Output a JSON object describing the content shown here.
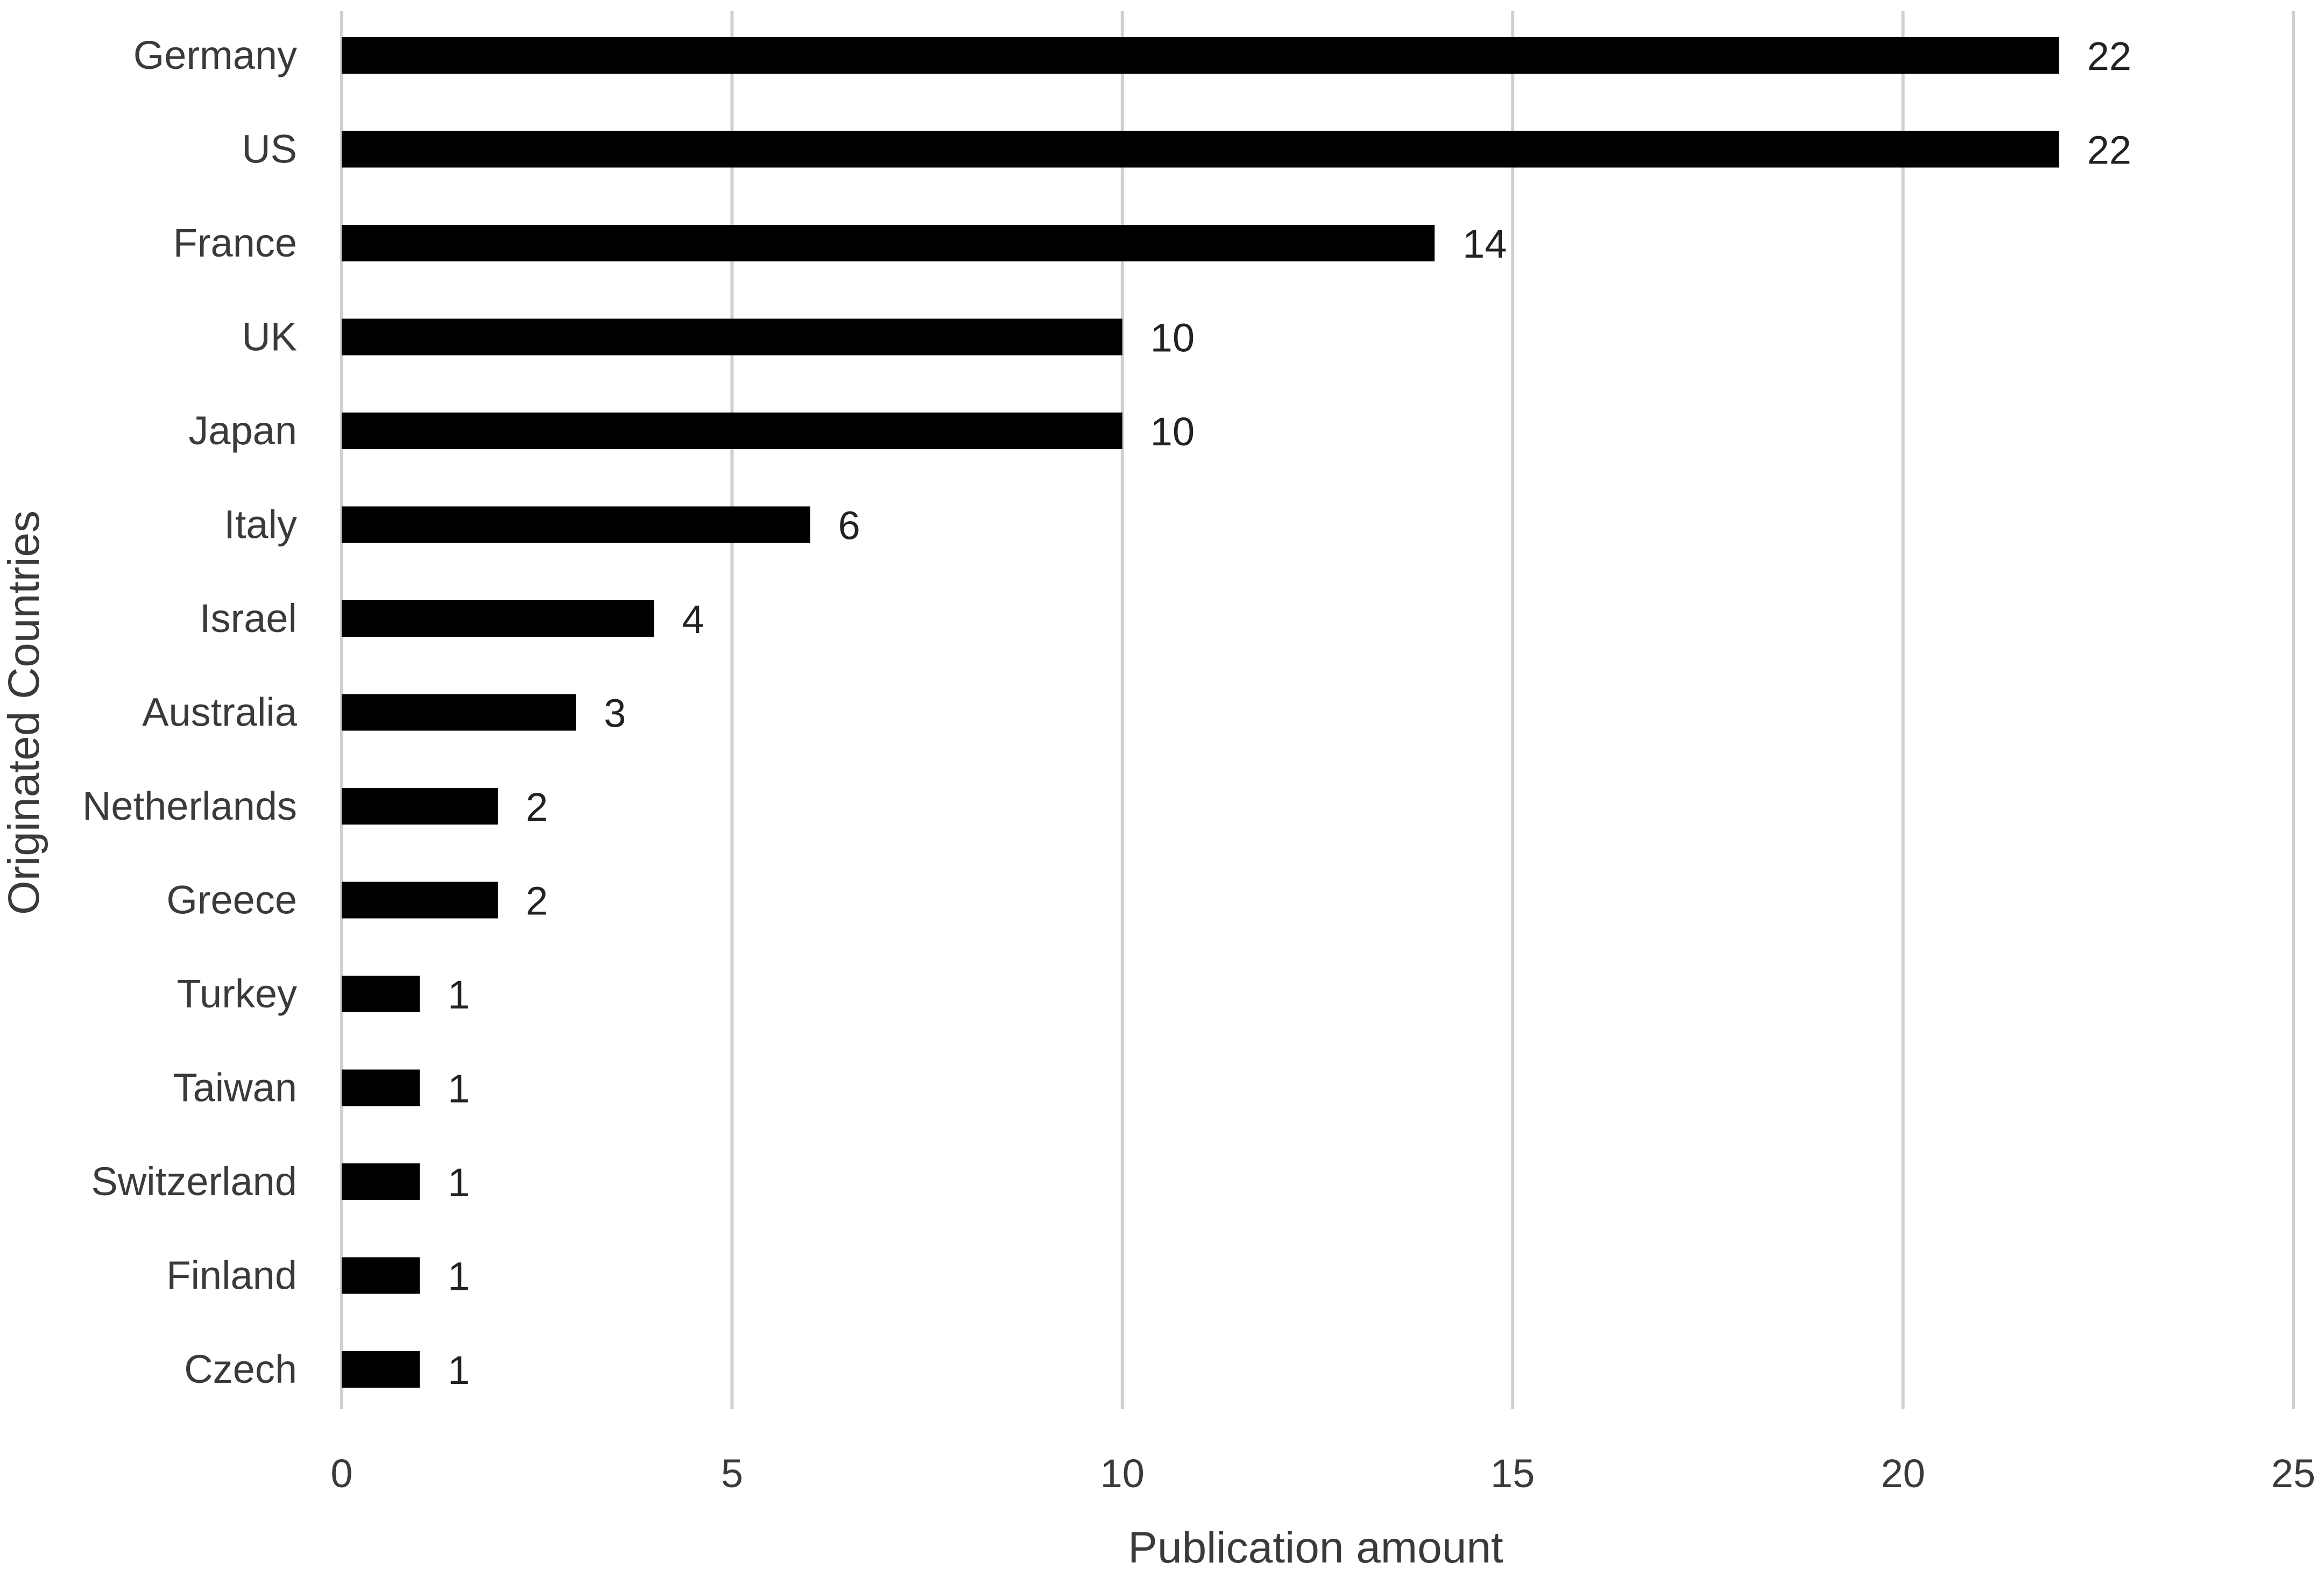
{
  "chart_data": {
    "type": "bar",
    "orientation": "horizontal",
    "title": "",
    "xlabel": "Publication amount",
    "ylabel": "Originated Countries",
    "categories": [
      "Germany",
      "US",
      "France",
      "UK",
      "Japan",
      "Italy",
      "Israel",
      "Australia",
      "Netherlands",
      "Greece",
      "Turkey",
      "Taiwan",
      "Switzerland",
      "Finland",
      "Czech"
    ],
    "values": [
      22,
      22,
      14,
      10,
      10,
      6,
      4,
      3,
      2,
      2,
      1,
      1,
      1,
      1,
      1
    ],
    "xlim": [
      0,
      25
    ],
    "xticks": [
      0,
      5,
      10,
      15,
      20,
      25
    ],
    "grid": "vertical",
    "legend": "none",
    "colors": {
      "bar": "#000000",
      "grid": "#d0d0d0",
      "text": "#3a3a3a"
    }
  }
}
